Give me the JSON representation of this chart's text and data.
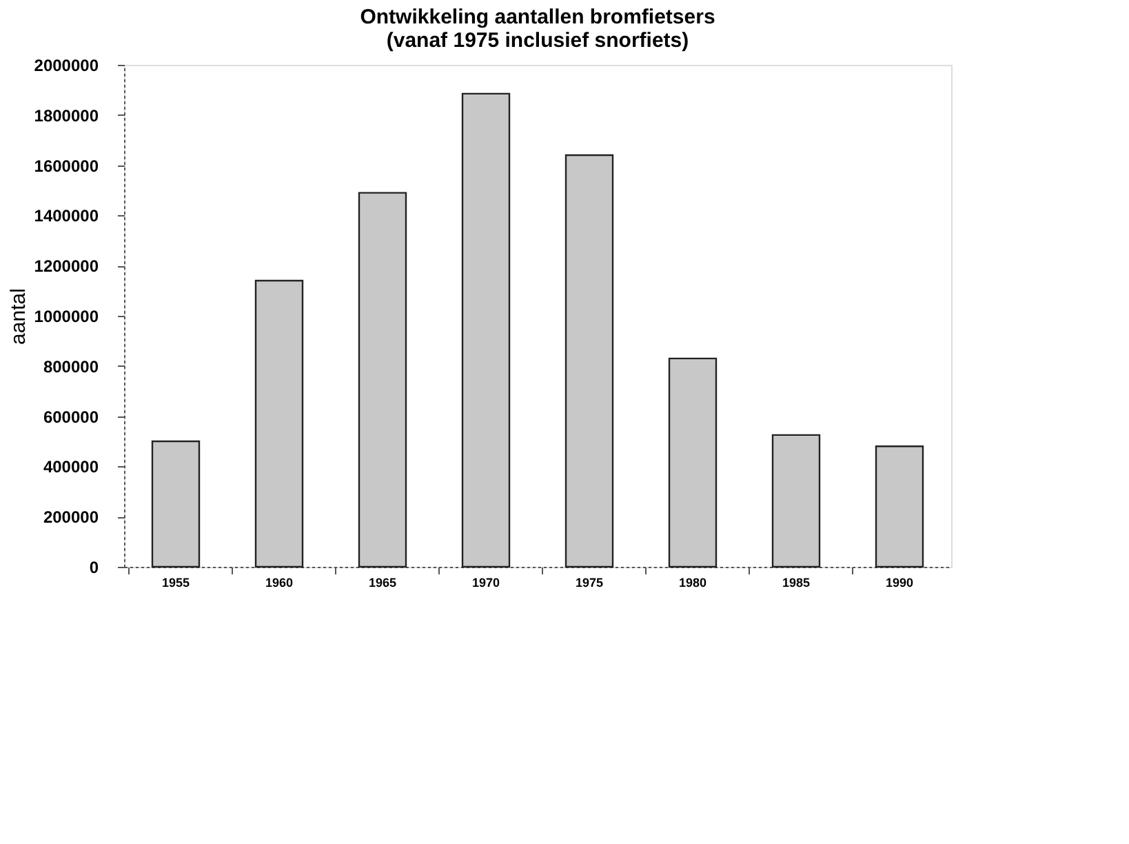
{
  "chart_data": {
    "type": "bar",
    "title": [
      "Ontwikkeling aantallen bromfietsers",
      "(vanaf 1975 inclusief snorfiets)"
    ],
    "ylabel": "aantal",
    "categories": [
      "1955",
      "1960",
      "1965",
      "1970",
      "1975",
      "1980",
      "1985",
      "1990"
    ],
    "values": [
      500000,
      1140000,
      1490000,
      1885000,
      1640000,
      830000,
      525000,
      480000
    ],
    "color": "#c8c8c8",
    "ylim": [
      0,
      2000000
    ],
    "yticks": [
      0,
      200000,
      400000,
      600000,
      800000,
      1000000,
      1200000,
      1400000,
      1600000,
      1800000,
      2000000
    ],
    "grid": false
  }
}
